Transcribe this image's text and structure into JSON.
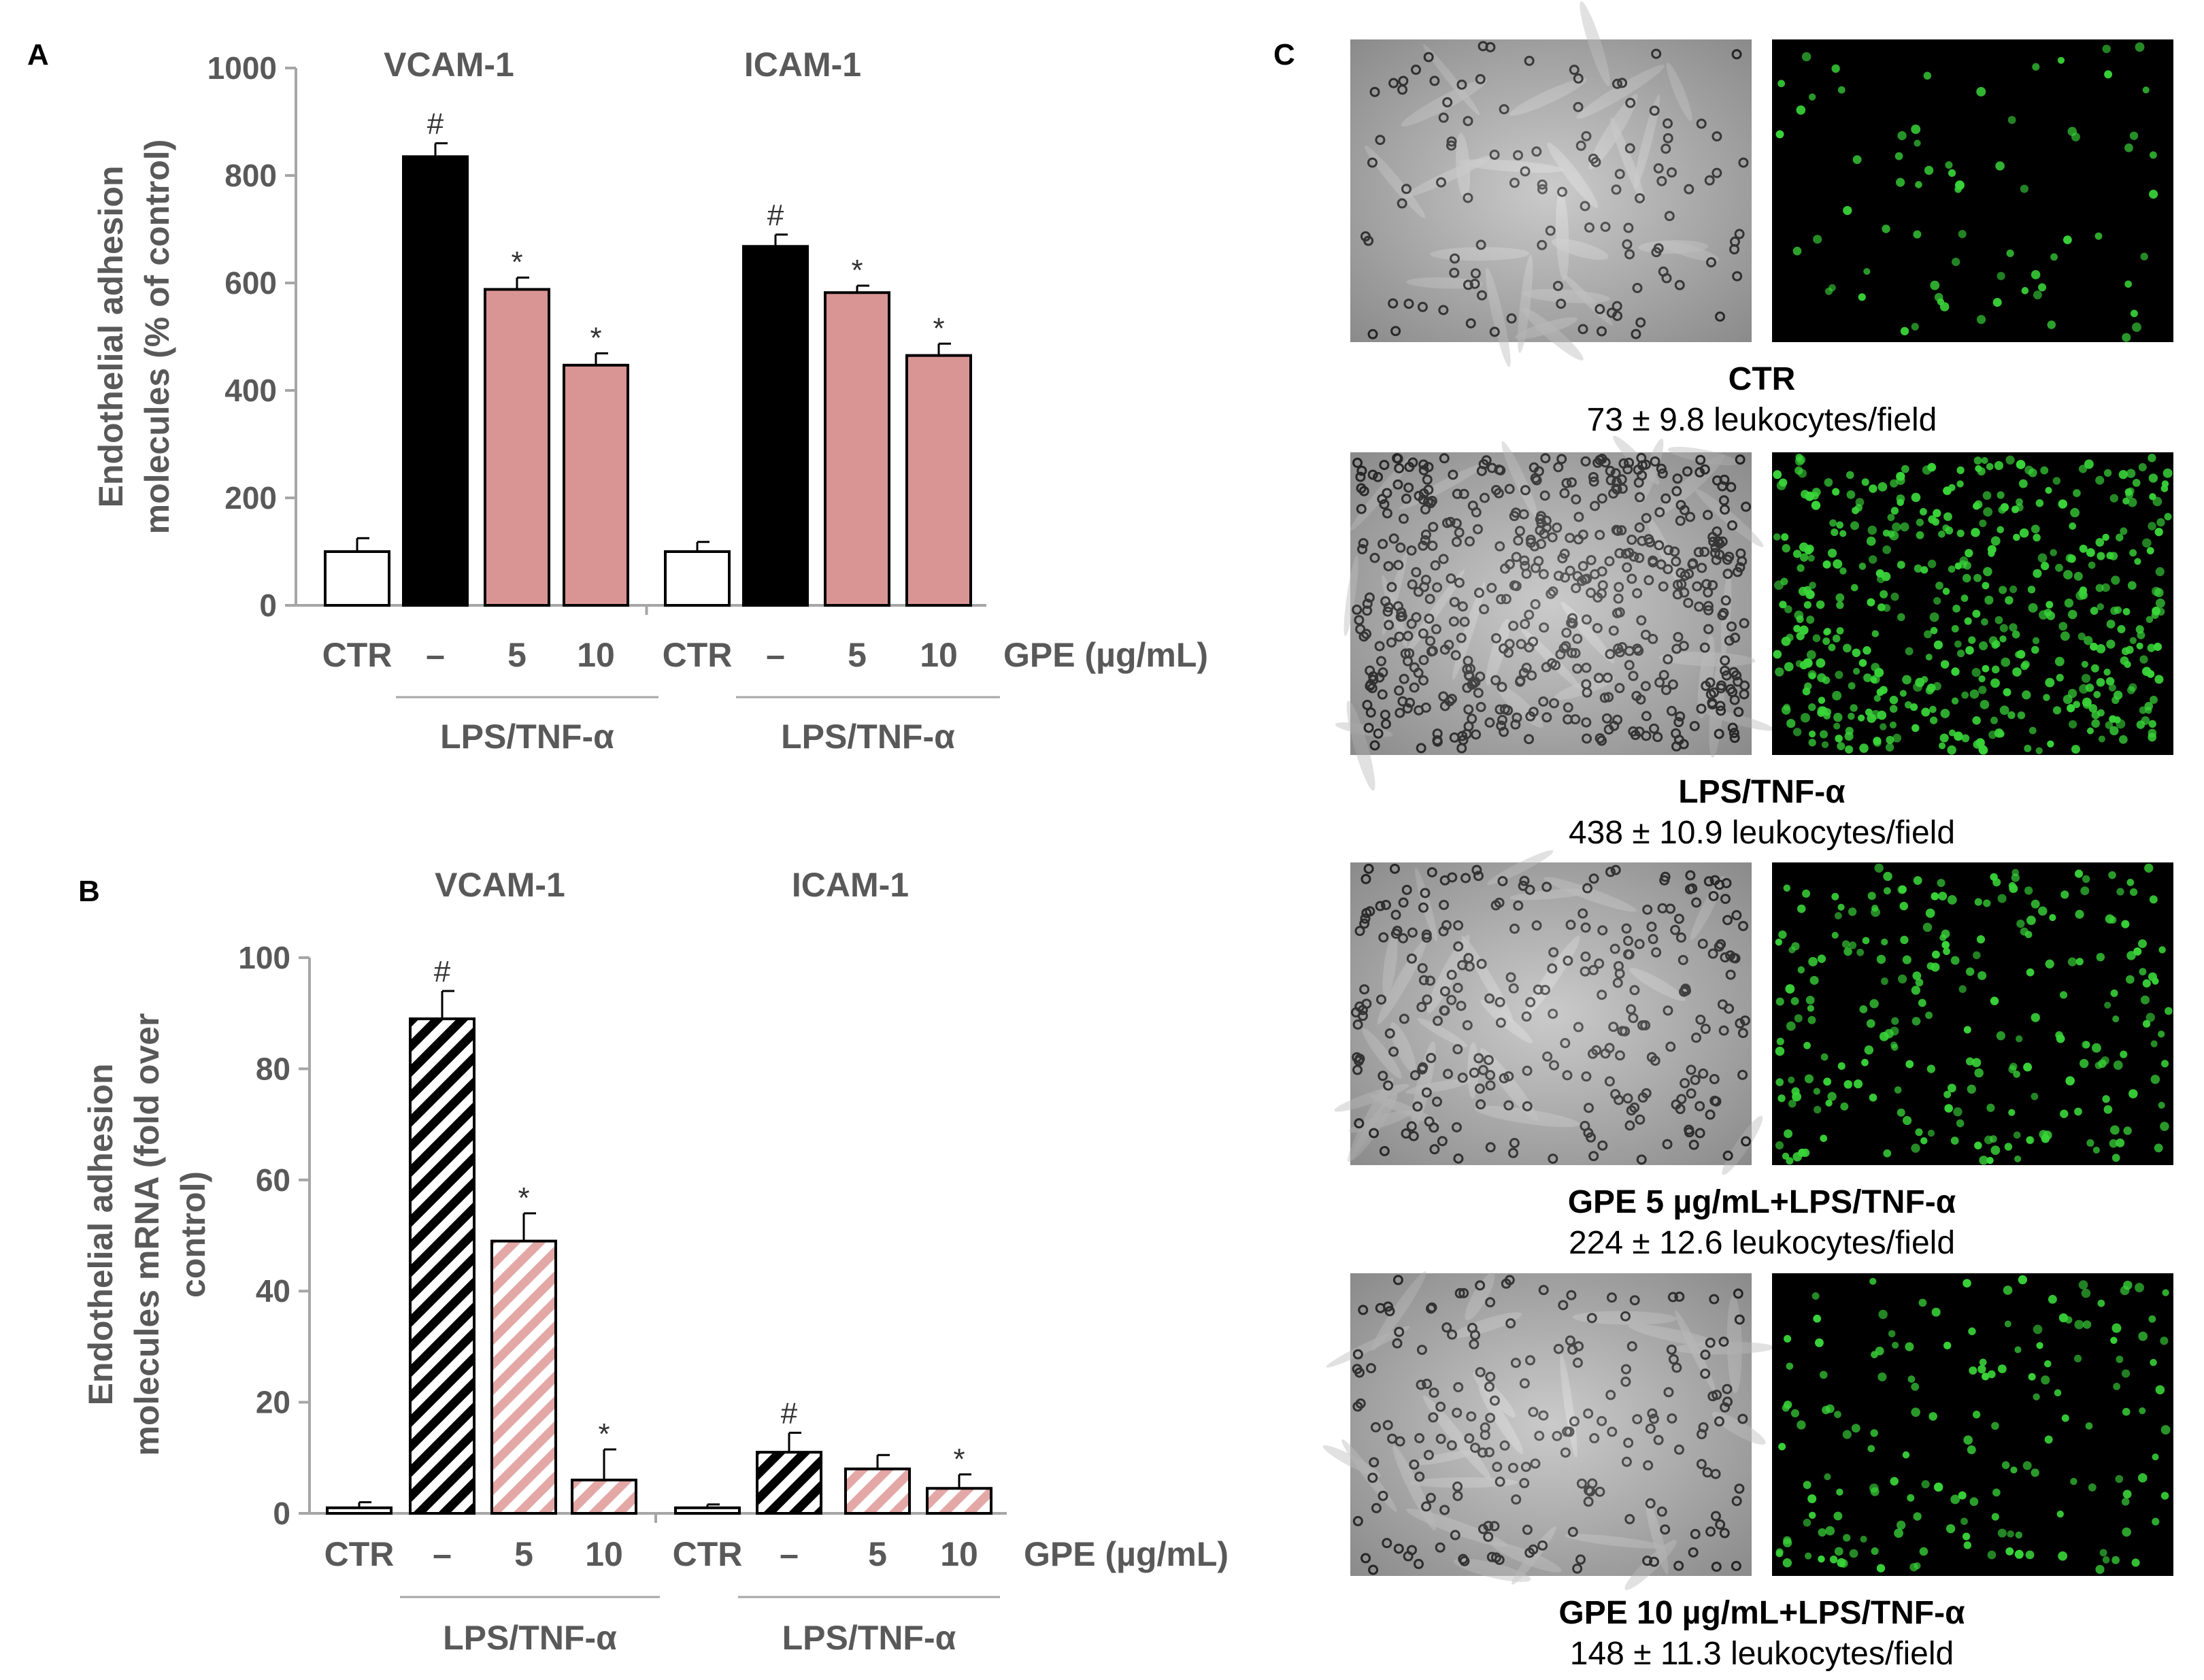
{
  "chart_data": [
    {
      "panel": "A",
      "type": "bar",
      "group_titles": [
        "VCAM-1",
        "ICAM-1"
      ],
      "categories": [
        "CTR",
        "–",
        "5",
        "10"
      ],
      "unit_label": "GPE (µg/mL)",
      "treatment_label": "LPS/TNF-α",
      "ylabel": "Endothelial adhesion molecules (% of control)",
      "ylabel_lines": [
        "Endothelial adhesion",
        "molecules (% of control)"
      ],
      "ylim": [
        0,
        1000
      ],
      "yticks": [
        0,
        200,
        400,
        600,
        800,
        1000
      ],
      "ytick_labels": [
        "0",
        "200",
        "400",
        "600",
        "800",
        "1000"
      ],
      "fill": "solid",
      "series": [
        {
          "group": "VCAM-1",
          "values": [
            100,
            835,
            588,
            447
          ],
          "errors": [
            25,
            25,
            22,
            22
          ],
          "marks": [
            "",
            "#",
            "*",
            "*"
          ]
        },
        {
          "group": "ICAM-1",
          "values": [
            100,
            668,
            582,
            465
          ],
          "errors": [
            18,
            22,
            13,
            22
          ],
          "marks": [
            "",
            "#",
            "*",
            "*"
          ]
        }
      ],
      "colors": [
        "#ffffff",
        "#000000",
        "#d99594",
        "#d99594"
      ]
    },
    {
      "panel": "B",
      "type": "bar",
      "group_titles": [
        "VCAM-1",
        "ICAM-1"
      ],
      "categories": [
        "CTR",
        "–",
        "5",
        "10"
      ],
      "unit_label": "GPE (µg/mL)",
      "treatment_label": "LPS/TNF-α",
      "ylabel": "Endothelial adhesion molecules mRNA (fold over control)",
      "ylabel_lines": [
        "Endothelial adhesion",
        "molecules mRNA (fold over",
        "control)"
      ],
      "ylim": [
        0,
        100
      ],
      "yticks": [
        0,
        20,
        40,
        60,
        80,
        100
      ],
      "ytick_labels": [
        "0",
        "20",
        "40",
        "60",
        "80",
        "100"
      ],
      "fill": "hatched",
      "series": [
        {
          "group": "VCAM-1",
          "values": [
            1,
            89,
            49,
            6
          ],
          "errors": [
            1,
            5,
            5,
            5.5
          ],
          "marks": [
            "",
            "#",
            "*",
            "*"
          ]
        },
        {
          "group": "ICAM-1",
          "values": [
            1,
            11,
            8,
            4.5
          ],
          "errors": [
            0.6,
            3.5,
            2.5,
            2.5
          ],
          "marks": [
            "",
            "#",
            "",
            "*"
          ]
        }
      ],
      "colors": [
        "#ffffff",
        "#000000",
        "#e3a8a6",
        "#e3a8a6"
      ]
    }
  ],
  "panel_letters": {
    "a": "A",
    "b": "B",
    "c": "C"
  },
  "panel_c": {
    "rows": [
      {
        "title": "CTR",
        "count": "73 ± 9.8 leukocytes/field",
        "density": 0.25,
        "cell_density_left": 110,
        "cell_density_right": 70
      },
      {
        "title": "LPS/TNF-α",
        "count": "438 ± 10.9 leukocytes/field",
        "density": 1.0,
        "cell_density_left": 520,
        "cell_density_right": 480
      },
      {
        "title": "GPE 5 µg/mL+LPS/TNF-α",
        "count": "224 ± 12.6 leukocytes/field",
        "density": 0.55,
        "cell_density_left": 260,
        "cell_density_right": 240
      },
      {
        "title": "GPE 10 µg/mL+LPS/TNF-α",
        "count": "148 ± 11.3 leukocytes/field",
        "density": 0.38,
        "cell_density_left": 190,
        "cell_density_right": 160
      }
    ],
    "colors": {
      "brightfield_bg": "#b9b9b9",
      "fluor_bg": "#000000",
      "fluor_cell": "#39d439",
      "bright_cell": "#2b2b2b"
    }
  }
}
